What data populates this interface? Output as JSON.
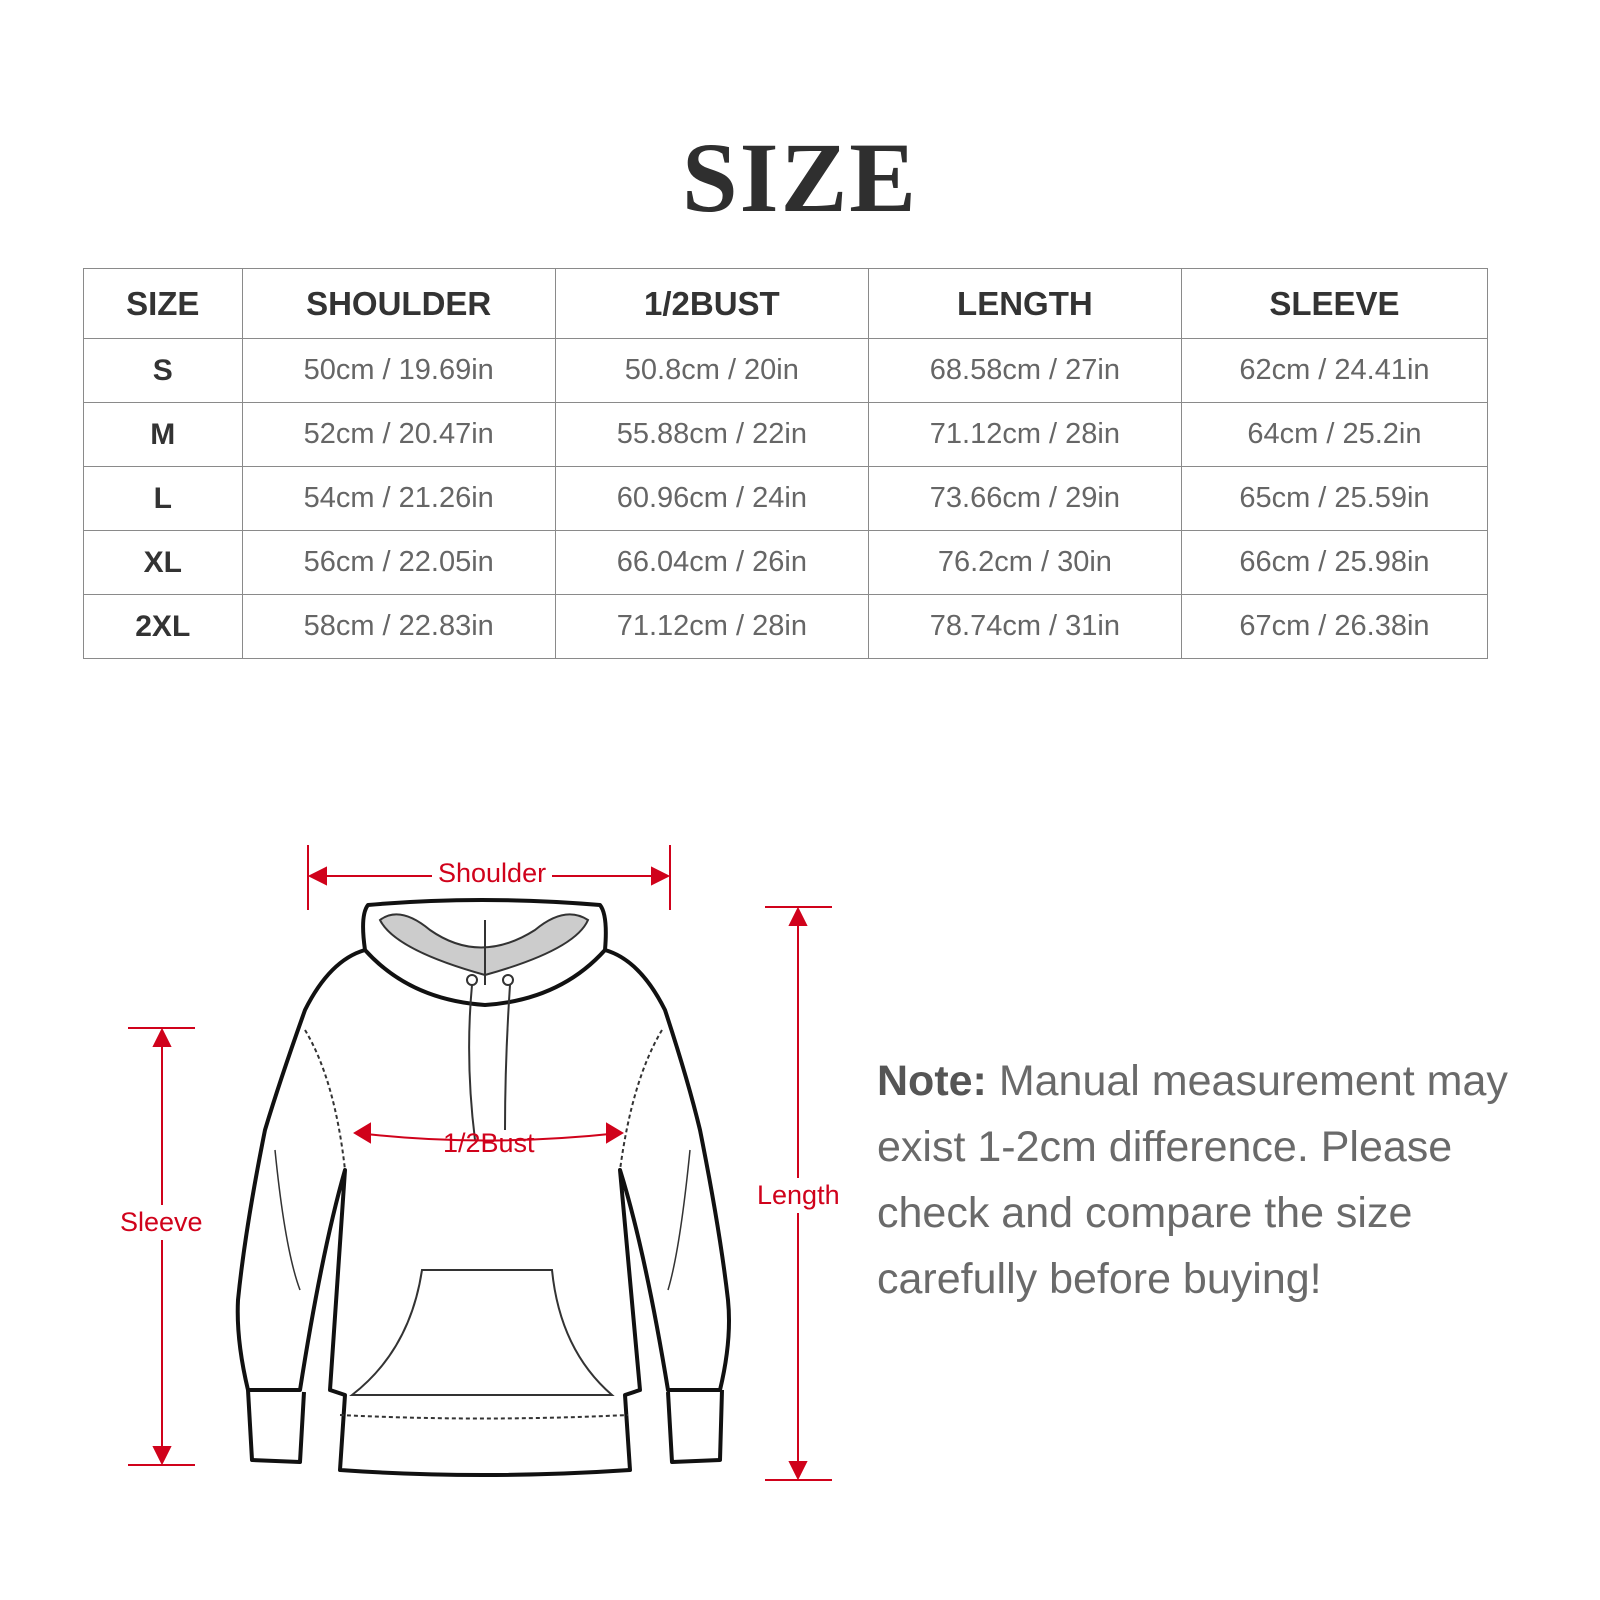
{
  "title": "SIZE",
  "table": {
    "headers": [
      "SIZE",
      "SHOULDER",
      "1/2BUST",
      "LENGTH",
      "SLEEVE"
    ],
    "rows": [
      [
        "S",
        "50cm / 19.69in",
        "50.8cm / 20in",
        "68.58cm / 27in",
        "62cm / 24.41in"
      ],
      [
        "M",
        "52cm / 20.47in",
        "55.88cm / 22in",
        "71.12cm / 28in",
        "64cm / 25.2in"
      ],
      [
        "L",
        "54cm / 21.26in",
        "60.96cm / 24in",
        "73.66cm / 29in",
        "65cm / 25.59in"
      ],
      [
        "XL",
        "56cm / 22.05in",
        "66.04cm / 26in",
        "76.2cm / 30in",
        "66cm / 25.98in"
      ],
      [
        "2XL",
        "58cm / 22.83in",
        "71.12cm / 28in",
        "78.74cm / 31in",
        "67cm / 26.38in"
      ]
    ]
  },
  "diagram": {
    "shoulder": "Shoulder",
    "bust": "1/2Bust",
    "sleeve": "Sleeve",
    "length": "Length",
    "accent_color": "#d0021b"
  },
  "note": {
    "label": "Note:",
    "text": "Manual measurement may exist 1-2cm difference. Please check and compare the size carefully before buying!"
  }
}
